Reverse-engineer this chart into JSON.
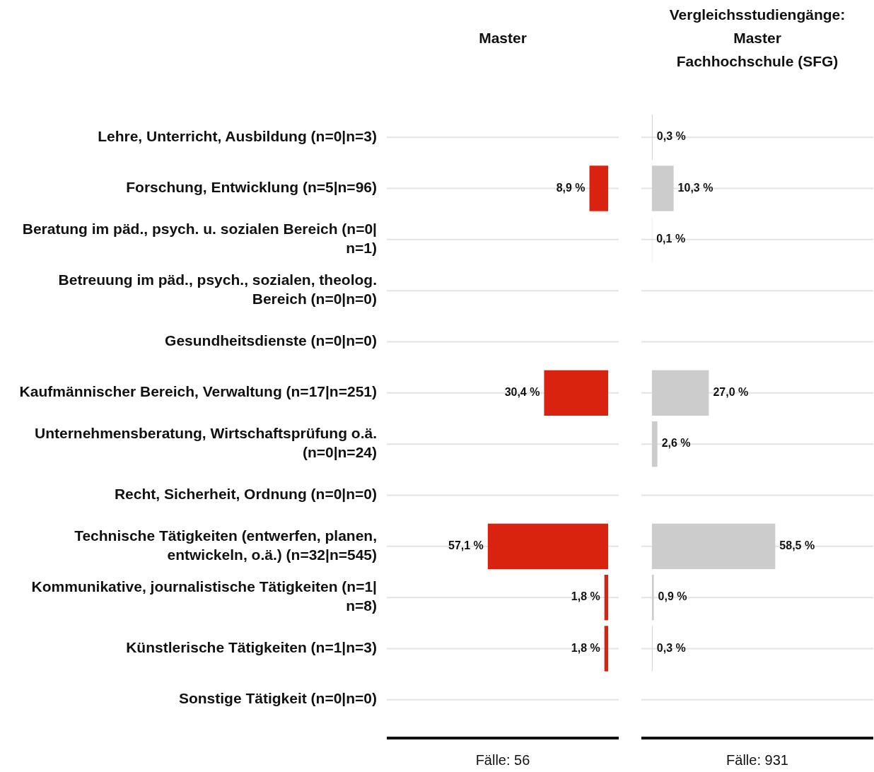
{
  "chart_data": [
    {
      "type": "bar",
      "orientation": "horizontal",
      "title": "Master",
      "xlabel": "Fälle: 56",
      "categories": [
        "Lehre, Unterricht, Ausbildung (n=0|n=3)",
        "Forschung, Entwicklung (n=5|n=96)",
        "Beratung im päd., psych. u. sozialen Bereich (n=0|n=1)",
        "Betreuung im päd., psych., sozialen, theolog. Bereich (n=0|n=0)",
        "Gesundheitsdienste (n=0|n=0)",
        "Kaufmännischer Bereich, Verwaltung (n=17|n=251)",
        "Unternehmensberatung, Wirtschaftsprüfung o.ä. (n=0|n=24)",
        "Recht, Sicherheit, Ordnung (n=0|n=0)",
        "Technische Tätigkeiten (entwerfen, planen, entwickeln, o.ä.) (n=32|n=545)",
        "Kommunikative, journalistische Tätigkeiten (n=1|n=8)",
        "Künstlerische Tätigkeiten (n=1|n=3)",
        "Sonstige Tätigkeit (n=0|n=0)"
      ],
      "values": [
        null,
        8.9,
        null,
        null,
        null,
        30.4,
        null,
        null,
        57.1,
        1.8,
        1.8,
        null
      ],
      "value_labels": [
        null,
        "8,9 %",
        null,
        null,
        null,
        "30,4 %",
        null,
        null,
        "57,1 %",
        "1,8 %",
        "1,8 %",
        null
      ],
      "color": "#d9230f",
      "xlim": [
        105,
        -5
      ],
      "tick_labels": "y",
      "grid": "y"
    },
    {
      "type": "bar",
      "orientation": "horizontal",
      "title": "Vergleichsstudiengänge:\nMaster\nFachhochschule (SFG)",
      "xlabel": "Fälle: 931",
      "categories": [
        null,
        null,
        null,
        null,
        null,
        null,
        null,
        null,
        null,
        null,
        null,
        null
      ],
      "values": [
        0.3,
        10.3,
        0.1,
        null,
        null,
        27.0,
        2.6,
        null,
        58.5,
        0.9,
        0.3,
        null
      ],
      "value_labels": [
        "0,3 %",
        "10,3 %",
        "0,1 %",
        null,
        null,
        "27,0 %",
        "2,6 %",
        null,
        "58,5 %",
        "0,9 %",
        "0,3 %",
        null
      ],
      "color": "#cccccc",
      "xlim": [
        -5,
        105
      ],
      "tick_labels": false,
      "grid": "y"
    }
  ]
}
